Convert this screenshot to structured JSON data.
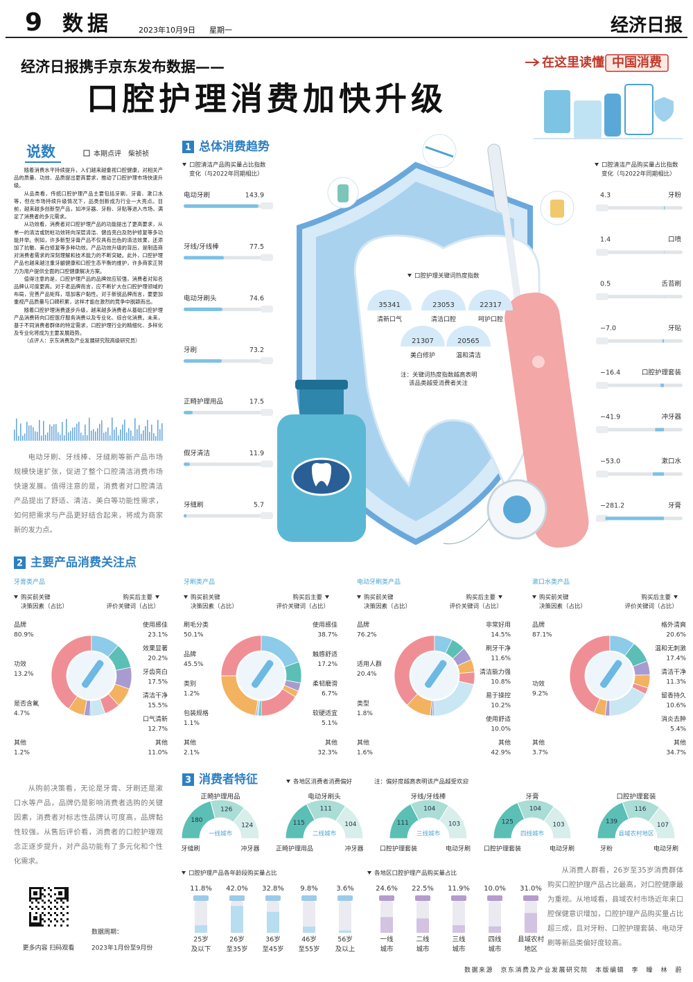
{
  "header": {
    "page_number": "9",
    "section": "数据",
    "date": "2023年10月9日",
    "weekday": "星期一",
    "masthead": "经济日报"
  },
  "headline": {
    "kicker": "经济日报携手京东发布数据——",
    "title": "口腔护理消费加快升级",
    "badge_lead": "在这里读懂",
    "badge_key": "中国消费"
  },
  "commentary": {
    "label": "说数",
    "byline": "本期点评　柴祯祯",
    "paragraphs": [
      "随着消费水平持续提升，人们越来越重视口腔健康，对相关产品的质量、功效、品质提出更高要求，推动了口腔护理市场快速升级。",
      "从品类看，传统口腔护理产品主要包括牙刷、牙膏、漱口水等，但在市场持续升级情况下，品类创新成为行业一大亮点。目前，越来越多创新型产品，如冲牙器、牙粉、牙贴等进入市场，满足了消费者的多元需求。",
      "从功效看，消费者对口腔护理产品的功能提出了更高要求，从单一的清洁或防蛀功效转向深层清洁、健齿亮白及防护修复等多功能并举。例如，许多新型牙膏产品不仅具有出色的清洁效果，还添加了抗敏、美白修复等多种功效。产品功效升级的背后，是制造商对消费者需求的深刻理解和技术能力的不断突破。此外，口腔护理产品也越来越注重牙龈健康和口腔生态平衡的维护，许多商家正努力为用户提供全面的口腔健康解决方案。",
      "值得注意的是，口腔护理产品的品牌效应较强，消费者对知名品牌认可度更高。对于老品牌而言，应不断扩大在口腔护理领域的布局，完善产品矩阵，增加客户黏性。对于新锐品牌而言，要更加重视产品质量与口碑积累，这样才能在激烈的竞争中脱颖而出。",
      "随着口腔护理消费逐步升级，越来越多消费者从基础口腔护理产品消费转向口腔医疗服务消费以及专业化、综合化消费。未来，基于不同消费者群体的特定需求，口腔护理行业的精细化、多样化及专业化将成为主要发展趋势。"
    ],
    "reviewer": "（点评人：京东消费及产业发展研究院高级研究员）"
  },
  "side_notes": [
    "电动牙刷、牙线棒、牙缝刷等新产品市场规模快速扩张，促进了整个口腔清洁消费市场快速发展。值得注意的是，消费者对口腔清洁产品提出了舒适、清洁、美白等功能性需求，如何把需求与产品更好结合起来，将成为商家新的发力点。",
    "从购前决策看，无论是牙膏、牙刷还是漱口水等产品，品牌仍是影响消费者选购的关键因素，消费者对标志性品牌认可度高，品牌黏性较强。从售后评价看，消费者的口腔护理观念正逐步提升，对产品功能有了多元化和个性化需求。",
    "从消费人群看，26岁至35岁消费群体购买口腔护理产品占比最高，对口腔健康最为重视。从地域看，县域农村市场近年来口腔保健意识增加，口腔护理产品购买量占比超三成，且对牙粉、口腔护理套装、电动牙刷等新品类偏好度较高。"
  ],
  "section1": {
    "number": "1",
    "title": "总体消费趋势",
    "left": {
      "note": [
        "口腔清洁产品购买量占比指数",
        "变化（与2022年同期相比）"
      ],
      "items": [
        {
          "name": "电动牙刷",
          "value": 143.9
        },
        {
          "name": "牙线/牙线棒",
          "value": 77.5
        },
        {
          "name": "电动牙刷头",
          "value": 74.6
        },
        {
          "name": "牙刷",
          "value": 73.2
        },
        {
          "name": "正畸护理用品",
          "value": 17.5
        },
        {
          "name": "假牙清洁",
          "value": 11.9
        },
        {
          "name": "牙缝刷",
          "value": 5.7
        }
      ]
    },
    "right": {
      "note": [
        "口腔清洁产品购买量占比指数",
        "变化（与2022年同期相比）"
      ],
      "items": [
        {
          "name": "牙粉",
          "value": 4.3,
          "label": "4.3"
        },
        {
          "name": "口喷",
          "value": 1.4,
          "label": "1.4"
        },
        {
          "name": "舌苔刷",
          "value": 0.5,
          "label": "0.5"
        },
        {
          "name": "牙贴",
          "value": -7.0,
          "label": "−7.0"
        },
        {
          "name": "口腔护理套装",
          "value": -16.4,
          "label": "−16.4"
        },
        {
          "name": "冲牙器",
          "value": -41.9,
          "label": "−41.9"
        },
        {
          "name": "漱口水",
          "value": -53.0,
          "label": "−53.0"
        },
        {
          "name": "牙膏",
          "value": -281.2,
          "label": "−281.2"
        }
      ]
    },
    "keywords": {
      "title": "口腔护理关键词热度指数",
      "items": [
        {
          "name": "清新口气",
          "value": 35341
        },
        {
          "name": "清洁口腔",
          "value": 23053
        },
        {
          "name": "呵护口腔",
          "value": 22317
        },
        {
          "name": "美白修护",
          "value": 21307
        },
        {
          "name": "温和清洁",
          "value": 20565
        }
      ],
      "note": [
        "注：关键词热度指数越高表明",
        "该品类越受消费者关注"
      ]
    }
  },
  "section2": {
    "number": "2",
    "title": "主要产品消费关注点",
    "pre_header": [
      "购买前关键",
      "决策因素（占比）"
    ],
    "post_header": [
      "购买后主要",
      "评价关键词（占比）"
    ],
    "panels": [
      {
        "title": "牙膏类产品",
        "pre": [
          {
            "name": "品牌",
            "value": 80.9,
            "label": "80.9%"
          },
          {
            "name": "功效",
            "value": 13.2,
            "label": "13.2%"
          },
          {
            "name": "是否含氟",
            "value": 4.7,
            "label": "4.7%"
          },
          {
            "name": "其他",
            "value": 1.2,
            "label": "1.2%"
          }
        ],
        "post": [
          {
            "name": "使用感佳",
            "value": 23.1,
            "label": "23.1%"
          },
          {
            "name": "效果显著",
            "value": 20.2,
            "label": "20.2%"
          },
          {
            "name": "牙齿亮白",
            "value": 17.5,
            "label": "17.5%"
          },
          {
            "name": "清洁干净",
            "value": 15.5,
            "label": "15.5%"
          },
          {
            "name": "口气清新",
            "value": 12.7,
            "label": "12.7%"
          },
          {
            "name": "其他",
            "value": 11.0,
            "label": "11.0%"
          }
        ]
      },
      {
        "title": "牙刷类产品",
        "pre": [
          {
            "name": "刷毛分类",
            "value": 50.1,
            "label": "50.1%"
          },
          {
            "name": "品牌",
            "value": 45.5,
            "label": "45.5%"
          },
          {
            "name": "类别",
            "value": 1.2,
            "label": "1.2%"
          },
          {
            "name": "包装规格",
            "value": 1.1,
            "label": "1.1%"
          },
          {
            "name": "其他",
            "value": 2.1,
            "label": "2.1%"
          }
        ],
        "post": [
          {
            "name": "使用感佳",
            "value": 38.7,
            "label": "38.7%"
          },
          {
            "name": "触感舒适",
            "value": 17.2,
            "label": "17.2%"
          },
          {
            "name": "柔韧磨滑",
            "value": 6.7,
            "label": "6.7%"
          },
          {
            "name": "软硬适宜",
            "value": 5.1,
            "label": "5.1%"
          },
          {
            "name": "其他",
            "value": 32.3,
            "label": "32.3%"
          }
        ]
      },
      {
        "title": "电动牙刷类产品",
        "pre": [
          {
            "name": "品牌",
            "value": 76.2,
            "label": "76.2%"
          },
          {
            "name": "适用人群",
            "value": 20.4,
            "label": "20.4%"
          },
          {
            "name": "类型",
            "value": 1.8,
            "label": "1.8%"
          },
          {
            "name": "其他",
            "value": 1.6,
            "label": "1.6%"
          }
        ],
        "post": [
          {
            "name": "非常好用",
            "value": 14.5,
            "label": "14.5%"
          },
          {
            "name": "刷牙干净",
            "value": 11.6,
            "label": "11.6%"
          },
          {
            "name": "清洁能力强",
            "value": 10.8,
            "label": "10.8%"
          },
          {
            "name": "易于操控",
            "value": 10.2,
            "label": "10.2%"
          },
          {
            "name": "使用舒适",
            "value": 10.0,
            "label": "10.0%"
          },
          {
            "name": "其他",
            "value": 42.9,
            "label": "42.9%"
          }
        ]
      },
      {
        "title": "漱口水类产品",
        "pre": [
          {
            "name": "品牌",
            "value": 87.1,
            "label": "87.1%"
          },
          {
            "name": "功效",
            "value": 9.2,
            "label": "9.2%"
          },
          {
            "name": "其他",
            "value": 3.7,
            "label": "3.7%"
          }
        ],
        "post": [
          {
            "name": "格外清爽",
            "value": 20.6,
            "label": "20.6%"
          },
          {
            "name": "温和无刺激",
            "value": 17.4,
            "label": "17.4%"
          },
          {
            "name": "清洁干净",
            "value": 11.3,
            "label": "11.3%"
          },
          {
            "name": "留香持久",
            "value": 10.6,
            "label": "10.6%"
          },
          {
            "name": "消炎去肿",
            "value": 5.4,
            "label": "5.4%"
          },
          {
            "name": "其他",
            "value": 34.7,
            "label": "34.7%"
          }
        ]
      }
    ]
  },
  "section3": {
    "number": "3",
    "title": "消费者特征",
    "gauge_title": "各地区消费者消费偏好",
    "gauge_note": "注：偏好度越高表明该产品越受欢迎",
    "gauges": [
      {
        "region": "一线城市",
        "left": {
          "name": "牙缝刷",
          "value": 180
        },
        "top": {
          "name": "正畸护理用品",
          "value": 126
        },
        "right": {
          "name": "冲牙器",
          "value": 124
        }
      },
      {
        "region": "二线城市",
        "left": {
          "name": "正畸护理用品",
          "value": 115
        },
        "top": {
          "name": "电动牙刷头",
          "value": 111
        },
        "right": {
          "name": "冲牙器",
          "value": 104
        }
      },
      {
        "region": "三线城市",
        "left": {
          "name": "口腔护理套装",
          "value": 111
        },
        "top": {
          "name": "牙线/牙线棒",
          "value": 104
        },
        "right": {
          "name": "电动牙刷",
          "value": 103
        }
      },
      {
        "region": "四线城市",
        "left": {
          "name": "口腔护理套装",
          "value": 125
        },
        "top": {
          "name": "牙膏",
          "value": 104
        },
        "right": {
          "name": "电动牙刷",
          "value": 103
        }
      },
      {
        "region": "县域农村地区",
        "left": {
          "name": "牙粉",
          "value": 139
        },
        "top": {
          "name": "口腔护理套装",
          "value": 116
        },
        "right": {
          "name": "电动牙刷",
          "value": 107
        }
      }
    ],
    "age": {
      "title": "口腔护理产品各年龄段购买量占比",
      "items": [
        {
          "lines": [
            "25岁",
            "及以下"
          ],
          "value": 11.8,
          "label": "11.8%"
        },
        {
          "lines": [
            "26岁",
            "至35岁"
          ],
          "value": 42.0,
          "label": "42.0%"
        },
        {
          "lines": [
            "36岁",
            "至45岁"
          ],
          "value": 32.8,
          "label": "32.8%"
        },
        {
          "lines": [
            "46岁",
            "至55岁"
          ],
          "value": 9.8,
          "label": "9.8%"
        },
        {
          "lines": [
            "56岁",
            "及以上"
          ],
          "value": 3.6,
          "label": "3.6%"
        }
      ]
    },
    "region": {
      "title": "各地区口腔护理产品购买量占比",
      "items": [
        {
          "lines": [
            "一线",
            "城市"
          ],
          "value": 24.6,
          "label": "24.6%"
        },
        {
          "lines": [
            "二线",
            "城市"
          ],
          "value": 22.5,
          "label": "22.5%"
        },
        {
          "lines": [
            "三线",
            "城市"
          ],
          "value": 11.9,
          "label": "11.9%"
        },
        {
          "lines": [
            "四线",
            "城市"
          ],
          "value": 10.0,
          "label": "10.0%"
        },
        {
          "lines": [
            "县域农村",
            "地区"
          ],
          "value": 31.0,
          "label": "31.0%"
        }
      ]
    }
  },
  "footer": {
    "qr_caption": "更多内容 扫码观看",
    "period": [
      "数据周期：",
      "2023年1月份至9月份"
    ],
    "credits": "数据来源　京东消费及产业发展研究院　本版编辑　李　瞳　林　蔚"
  }
}
